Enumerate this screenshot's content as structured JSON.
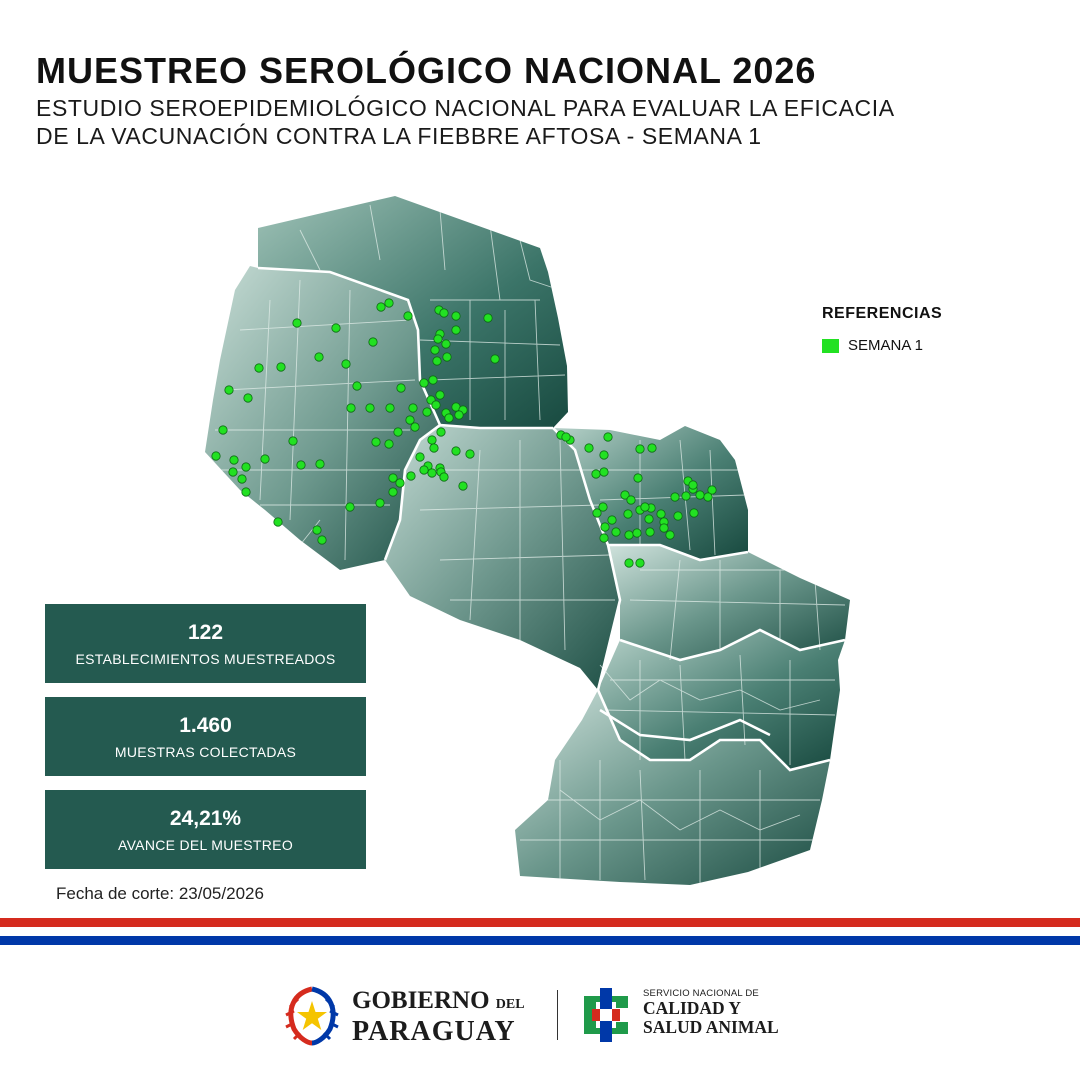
{
  "header": {
    "title": "MUESTREO SEROLÓGICO NACIONAL 2026",
    "subtitle_line1": "ESTUDIO SEROEPIDEMIOLÓGICO NACIONAL PARA EVALUAR LA EFICACIA",
    "subtitle_line2": "DE LA VACUNACIÓN CONTRA LA FIEBBRE AFTOSA - SEMANA 1"
  },
  "legend": {
    "title": "REFERENCIAS",
    "items": [
      {
        "label": "SEMANA 1",
        "color": "#22e122"
      }
    ]
  },
  "stats": [
    {
      "value": "122",
      "label": "ESTABLECIMIENTOS MUESTREADOS"
    },
    {
      "value": "1.460",
      "label": "MUESTRAS COLECTADAS"
    },
    {
      "value": "24,21%",
      "label": "AVANCE DEL MUESTREO"
    }
  ],
  "fecha": "Fecha de corte: 23/05/2026",
  "colors": {
    "map_dark": "#184a40",
    "map_light": "#c4dbd4",
    "panel": "#245a50",
    "flag_red": "#d52b1e",
    "flag_blue": "#0038a8",
    "point": "#22e122"
  },
  "footer": {
    "gobierno_line1": "GOBIERNO",
    "gobierno_del": "DEL",
    "gobierno_line2": "PARAGUAY",
    "senacsa_line1": "SERVICIO NACIONAL DE",
    "senacsa_line2": "CALIDAD Y",
    "senacsa_line3": "SALUD ANIMAL"
  }
}
